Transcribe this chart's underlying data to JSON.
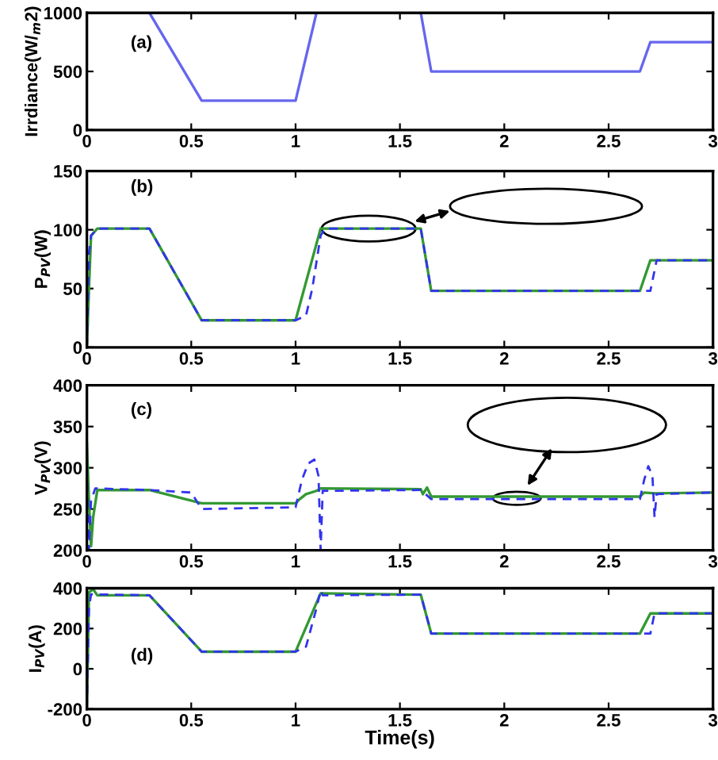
{
  "chart_data": [
    {
      "type": "line",
      "ylabel": "Irrdiance(W/$_{m}$2)",
      "annotations": [
        "(a)"
      ],
      "xlim": [
        0,
        3
      ],
      "xticks": [
        0,
        0.5,
        1,
        1.5,
        2,
        2.5,
        3
      ],
      "ylim": [
        0,
        1000
      ],
      "yticks": [
        0,
        500,
        1000
      ],
      "grid": false,
      "legend": false,
      "series": [
        {
          "color": "#6666ee",
          "line_style": "solid",
          "x": [
            0,
            0.3,
            0.55,
            1.0,
            1.1,
            1.6,
            1.65,
            2.65,
            2.7,
            3
          ],
          "values": [
            1000,
            1000,
            250,
            250,
            1000,
            1000,
            500,
            500,
            750,
            750
          ]
        }
      ]
    },
    {
      "type": "line",
      "ylabel": "P$_{PV}$(W)",
      "annotations": [
        "(b)"
      ],
      "xlim": [
        0,
        3
      ],
      "xticks": [
        0,
        0.5,
        1,
        1.5,
        2,
        2.5,
        3
      ],
      "ylim": [
        0,
        150
      ],
      "yticks": [
        0,
        50,
        100,
        150
      ],
      "grid": false,
      "legend": false,
      "series": [
        {
          "color": "#3333ee",
          "line_style": "dashed",
          "x": [
            0,
            0.01,
            0.02,
            0.05,
            0.3,
            0.55,
            1.0,
            1.05,
            1.08,
            1.12,
            1.14,
            1.6,
            1.65,
            2.7,
            2.73,
            3
          ],
          "values": [
            0,
            80,
            95,
            101,
            101,
            23,
            23,
            27,
            50,
            95,
            101,
            101,
            48,
            48,
            74,
            74
          ]
        },
        {
          "color": "#339933",
          "line_style": "solid",
          "x": [
            0,
            0.01,
            0.02,
            0.05,
            0.3,
            0.55,
            1.0,
            1.12,
            1.6,
            1.65,
            2.65,
            2.7,
            3
          ],
          "values": [
            0,
            50,
            95,
            101,
            101,
            23,
            23,
            101,
            101,
            48,
            48,
            74,
            74
          ]
        }
      ]
    },
    {
      "type": "line",
      "ylabel": "V$_{PV}$(V)",
      "annotations": [
        "(c)"
      ],
      "xlim": [
        0,
        3
      ],
      "xticks": [
        0,
        0.5,
        1,
        1.5,
        2,
        2.5,
        3
      ],
      "ylim": [
        200,
        400
      ],
      "yticks": [
        200,
        250,
        300,
        350,
        400
      ],
      "grid": false,
      "legend": false,
      "series": [
        {
          "color": "#3333ee",
          "line_style": "dashed",
          "x": [
            0,
            0.01,
            0.02,
            0.04,
            0.3,
            0.5,
            0.55,
            1.0,
            1.03,
            1.06,
            1.09,
            1.11,
            1.12,
            1.13,
            1.6,
            1.65,
            2.65,
            2.67,
            2.69,
            2.71,
            2.72,
            2.73,
            3
          ],
          "values": [
            300,
            200,
            260,
            275,
            273,
            270,
            250,
            252,
            285,
            305,
            310,
            290,
            200,
            272,
            273,
            262,
            262,
            285,
            302,
            290,
            240,
            268,
            270
          ]
        },
        {
          "color": "#339933",
          "line_style": "solid",
          "x": [
            0,
            0.01,
            0.02,
            0.03,
            0.05,
            0.3,
            0.55,
            1.0,
            1.02,
            1.05,
            1.1,
            1.12,
            1.6,
            1.61,
            1.63,
            1.65,
            2.65,
            2.67,
            2.72,
            3
          ],
          "values": [
            330,
            260,
            205,
            240,
            273,
            273,
            257,
            257,
            262,
            268,
            272,
            275,
            274,
            268,
            276,
            265,
            265,
            270,
            269,
            270
          ]
        }
      ]
    },
    {
      "type": "line",
      "ylabel": "I$_{PV}$(A)",
      "xlabel": "Time(s)",
      "annotations": [
        "(d)"
      ],
      "xlim": [
        0,
        3
      ],
      "xticks": [
        0,
        0.5,
        1,
        1.5,
        2,
        2.5,
        3
      ],
      "ylim": [
        -200,
        400
      ],
      "yticks": [
        -200,
        0,
        200,
        400
      ],
      "grid": false,
      "legend": false,
      "series": [
        {
          "color": "#3333ee",
          "line_style": "dashed",
          "x": [
            0,
            0.01,
            0.02,
            0.3,
            0.55,
            1.0,
            1.05,
            1.1,
            1.12,
            1.13,
            1.6,
            1.65,
            2.7,
            2.72,
            3
          ],
          "values": [
            -200,
            300,
            370,
            365,
            85,
            85,
            110,
            300,
            390,
            365,
            368,
            175,
            175,
            275,
            275
          ]
        },
        {
          "color": "#339933",
          "line_style": "solid",
          "x": [
            0,
            0.01,
            0.03,
            0.05,
            0.3,
            0.55,
            1.0,
            1.12,
            1.6,
            1.65,
            2.65,
            2.7,
            3
          ],
          "values": [
            -200,
            380,
            395,
            365,
            365,
            85,
            85,
            375,
            368,
            175,
            175,
            275,
            275
          ]
        }
      ]
    }
  ]
}
